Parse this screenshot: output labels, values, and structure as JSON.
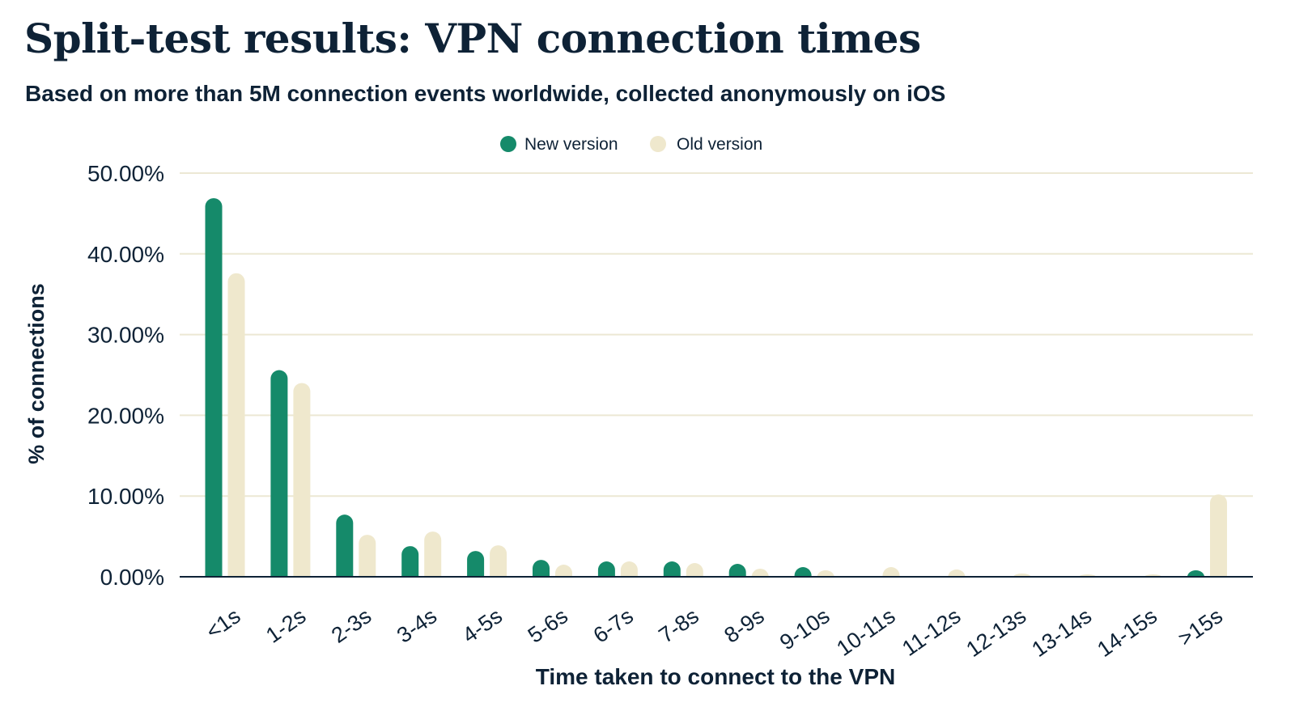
{
  "page": {
    "title": "Split-test results: VPN connection times",
    "subtitle": "Based on more than 5M connection events worldwide, collected anonymously on iOS"
  },
  "colors": {
    "new_version": "#158a6a",
    "old_version": "#efe8cd",
    "gridline": "#ece8d4",
    "axis": "#0e2236",
    "text": "#0e2236"
  },
  "chart_data": {
    "type": "bar",
    "title": "Split-test results: VPN connection times",
    "subtitle": "Based on more than 5M connection events worldwide, collected anonymously on iOS",
    "xlabel": "Time taken to connect to the VPN",
    "ylabel": "% of connections",
    "ylim": [
      0,
      50
    ],
    "yticks": [
      "0.00%",
      "10.00%",
      "20.00%",
      "30.00%",
      "40.00%",
      "50.00%"
    ],
    "grid": true,
    "legend_position": "top-center",
    "categories": [
      "<1s",
      "1-2s",
      "2-3s",
      "3-4s",
      "4-5s",
      "5-6s",
      "6-7s",
      "7-8s",
      "8-9s",
      "9-10s",
      "10-11s",
      "11-12s",
      "12-13s",
      "13-14s",
      "14-15s",
      ">15s"
    ],
    "series": [
      {
        "name": "New version",
        "color": "#158a6a",
        "values": [
          46.9,
          25.6,
          7.7,
          3.8,
          3.2,
          2.1,
          1.9,
          1.9,
          1.6,
          1.2,
          0.0,
          0.0,
          0.0,
          0.0,
          0.0,
          0.8
        ]
      },
      {
        "name": "Old version",
        "color": "#efe8cd",
        "values": [
          37.6,
          24.0,
          5.2,
          5.6,
          3.9,
          1.5,
          1.9,
          1.7,
          1.0,
          0.8,
          1.2,
          0.9,
          0.4,
          0.3,
          0.3,
          10.2
        ]
      }
    ]
  }
}
